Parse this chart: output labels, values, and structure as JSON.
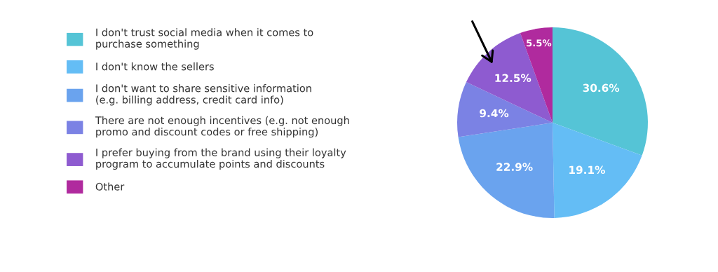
{
  "chart_data": {
    "type": "pie",
    "categories": [
      "I don't trust social media when it comes to\npurchase something",
      "I don't know the sellers",
      "I don't want to share sensitive information\n(e.g. billing address, credit card info)",
      "There are not enough incentives (e.g. not enough\npromo and discount codes or free shipping)",
      "I prefer buying from the brand using their loyalty\nprogram to accumulate points and discounts",
      "Other"
    ],
    "values": [
      30.6,
      19.1,
      22.9,
      9.4,
      12.5,
      5.5
    ],
    "colors": [
      "#55c4d6",
      "#64bdf5",
      "#6aa3ee",
      "#7b82e4",
      "#8e5bd0",
      "#b02a9e"
    ],
    "value_labels": [
      "30.6%",
      "19.1%",
      "22.9%",
      "9.4%",
      "12.5%",
      "5.5%"
    ],
    "legend": "left"
  }
}
